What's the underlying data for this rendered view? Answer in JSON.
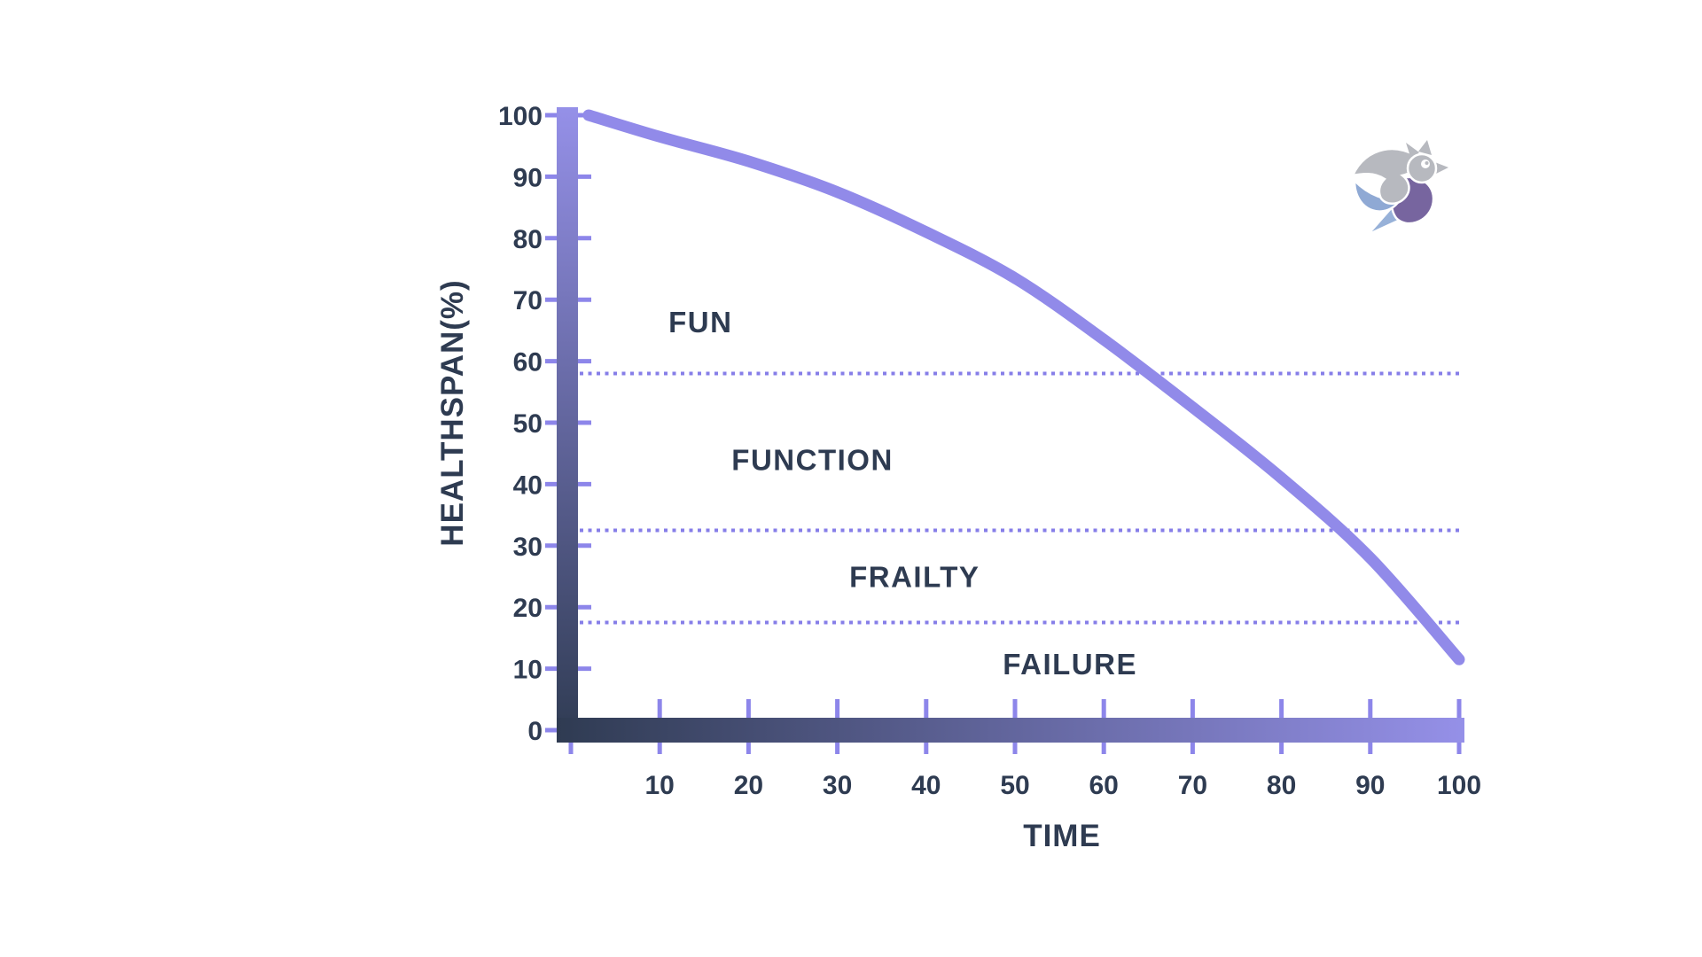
{
  "page": {
    "background": "#ffffff"
  },
  "brand_logo": {
    "name": "bird-logo",
    "colors": {
      "wing_gray": "#b7b9bf",
      "wing_blue": "#8fa9d4",
      "body_purple": "#77659f",
      "tail_blue": "#97b1d8",
      "eye_white": "#ffffff",
      "eye_dot": "#b7b9bf"
    }
  },
  "chart_data": {
    "type": "line",
    "title": "",
    "xlabel": "TIME",
    "ylabel": "HEALTHSPAN(%)",
    "xlim": [
      0,
      100
    ],
    "ylim": [
      0,
      100
    ],
    "grid": "off",
    "legend": "none",
    "x_ticks": {
      "values": [
        0,
        10,
        20,
        30,
        40,
        50,
        60,
        70,
        80,
        90,
        100
      ],
      "labels": [
        "",
        "10",
        "20",
        "30",
        "40",
        "50",
        "60",
        "70",
        "80",
        "90",
        "100"
      ]
    },
    "y_ticks": {
      "values": [
        0,
        10,
        20,
        30,
        40,
        50,
        60,
        70,
        80,
        90,
        100
      ],
      "labels": [
        "0",
        "10",
        "20",
        "30",
        "40",
        "50",
        "60",
        "70",
        "80",
        "90",
        "100"
      ]
    },
    "series": [
      {
        "name": "healthspan-decline-curve",
        "color": "#918ae9",
        "points": [
          [
            2,
            100
          ],
          [
            10,
            96.5
          ],
          [
            20,
            92.5
          ],
          [
            30,
            87.5
          ],
          [
            40,
            81
          ],
          [
            50,
            73.5
          ],
          [
            60,
            63.5
          ],
          [
            70,
            52.5
          ],
          [
            80,
            41
          ],
          [
            90,
            28
          ],
          [
            100,
            11.5
          ]
        ]
      }
    ],
    "zone_boundaries": [
      58,
      32.5,
      17.5
    ],
    "zones": [
      {
        "label": "FUN",
        "label_x": 14.6,
        "label_y": 66.4
      },
      {
        "label": "FUNCTION",
        "label_x": 27.2,
        "label_y": 44.0
      },
      {
        "label": "FRAILTY",
        "label_x": 38.7,
        "label_y": 25.0
      },
      {
        "label": "FAILURE",
        "label_x": 56.2,
        "label_y": 10.8
      }
    ],
    "colors": {
      "axis_dark": "#2f3b52",
      "axis_light": "#9590e8",
      "tick": "#8d86ea",
      "dotted_line": "#867ee8",
      "curve": "#918ae9",
      "text": "#2e3b51"
    }
  }
}
